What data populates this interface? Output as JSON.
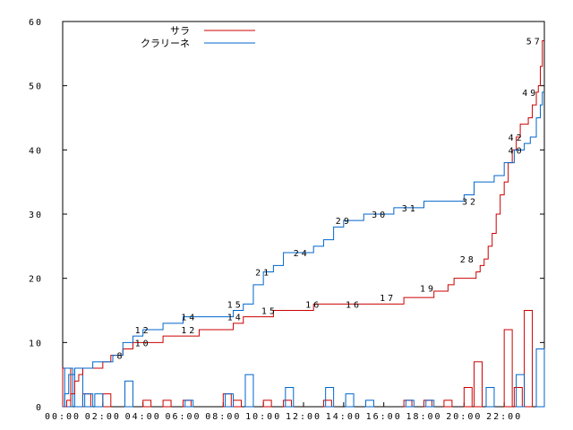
{
  "chart_data": {
    "type": "line",
    "ylim": [
      0,
      60
    ],
    "yticks": [
      0,
      10,
      20,
      30,
      40,
      50,
      60
    ],
    "ytick_labels": [
      "0",
      "10",
      "20",
      "30",
      "40",
      "50",
      "60"
    ],
    "xlim": [
      0,
      24
    ],
    "xticks": [
      0,
      2,
      4,
      6,
      8,
      10,
      12,
      14,
      16,
      18,
      20,
      22
    ],
    "xtick_labels": [
      "00:00",
      "02:00",
      "04:00",
      "06:00",
      "08:00",
      "10:00",
      "12:00",
      "14:00",
      "16:00",
      "18:00",
      "20:00",
      "22:00"
    ],
    "legend_position": "top-left",
    "series": [
      {
        "name": "サラ",
        "color": "#cc0000",
        "cumulative": [
          [
            0,
            0
          ],
          [
            0.2,
            1
          ],
          [
            0.4,
            2
          ],
          [
            0.6,
            4
          ],
          [
            0.8,
            5
          ],
          [
            1.0,
            6
          ],
          [
            1.4,
            6
          ],
          [
            2.0,
            7
          ],
          [
            2.4,
            8
          ],
          [
            3.0,
            9
          ],
          [
            3.5,
            10
          ],
          [
            4.5,
            10
          ],
          [
            5.0,
            11
          ],
          [
            6.5,
            11
          ],
          [
            6.8,
            12
          ],
          [
            8.0,
            12
          ],
          [
            8.5,
            13
          ],
          [
            9.0,
            14
          ],
          [
            9.8,
            14
          ],
          [
            10.5,
            15
          ],
          [
            12.0,
            15
          ],
          [
            12.5,
            16
          ],
          [
            16.5,
            16
          ],
          [
            17.0,
            17
          ],
          [
            18.0,
            17
          ],
          [
            18.5,
            18
          ],
          [
            19.2,
            19
          ],
          [
            19.5,
            20
          ],
          [
            20.3,
            20
          ],
          [
            20.6,
            21
          ],
          [
            20.8,
            22
          ],
          [
            21.0,
            23
          ],
          [
            21.2,
            25
          ],
          [
            21.4,
            27
          ],
          [
            21.6,
            30
          ],
          [
            21.8,
            33
          ],
          [
            22.0,
            35
          ],
          [
            22.2,
            38
          ],
          [
            22.4,
            40
          ],
          [
            22.6,
            42
          ],
          [
            22.8,
            44
          ],
          [
            23.2,
            45
          ],
          [
            23.4,
            47
          ],
          [
            23.6,
            49
          ],
          [
            23.7,
            50
          ],
          [
            23.8,
            53
          ],
          [
            23.9,
            57
          ]
        ]
      },
      {
        "name": "クラリーネ",
        "color": "#0066cc",
        "cumulative": [
          [
            0,
            0
          ],
          [
            0.1,
            2
          ],
          [
            0.3,
            5
          ],
          [
            0.6,
            6
          ],
          [
            1.0,
            6
          ],
          [
            1.5,
            7
          ],
          [
            2.5,
            8
          ],
          [
            3.0,
            10
          ],
          [
            3.5,
            11
          ],
          [
            4.0,
            12
          ],
          [
            5.0,
            13
          ],
          [
            6.0,
            14
          ],
          [
            8.5,
            15
          ],
          [
            9.0,
            16
          ],
          [
            9.5,
            19
          ],
          [
            10.0,
            21
          ],
          [
            10.5,
            22
          ],
          [
            11.0,
            24
          ],
          [
            12.5,
            25
          ],
          [
            13.0,
            26
          ],
          [
            13.5,
            28
          ],
          [
            14.0,
            29
          ],
          [
            15.0,
            30
          ],
          [
            16.5,
            31
          ],
          [
            18.0,
            32
          ],
          [
            19.5,
            32
          ],
          [
            20.0,
            33
          ],
          [
            20.5,
            35
          ],
          [
            21.0,
            35
          ],
          [
            21.5,
            36
          ],
          [
            22.0,
            38
          ],
          [
            22.5,
            40
          ],
          [
            23.0,
            41
          ],
          [
            23.3,
            42
          ],
          [
            23.6,
            45
          ],
          [
            23.8,
            47
          ],
          [
            23.9,
            49
          ]
        ]
      }
    ],
    "histogram": {
      "bin_width": 0.5,
      "サラ": [
        [
          0,
          6
        ],
        [
          1,
          2
        ],
        [
          2,
          2
        ],
        [
          4,
          1
        ],
        [
          5,
          1
        ],
        [
          6,
          1
        ],
        [
          8,
          2
        ],
        [
          8.5,
          1
        ],
        [
          10,
          1
        ],
        [
          11,
          1
        ],
        [
          13,
          1
        ],
        [
          17,
          1
        ],
        [
          18,
          1
        ],
        [
          19,
          1
        ],
        [
          20,
          3
        ],
        [
          20.5,
          7
        ],
        [
          22,
          12
        ],
        [
          22.5,
          3
        ],
        [
          23,
          15
        ]
      ],
      "クラリーネ": [
        [
          0,
          6
        ],
        [
          0.5,
          6
        ],
        [
          1,
          2
        ],
        [
          1.5,
          2
        ],
        [
          3,
          4
        ],
        [
          6,
          1
        ],
        [
          8,
          2
        ],
        [
          9,
          5
        ],
        [
          11,
          3
        ],
        [
          13,
          3
        ],
        [
          14,
          2
        ],
        [
          15,
          1
        ],
        [
          17,
          1
        ],
        [
          18,
          1
        ],
        [
          21,
          3
        ],
        [
          22.5,
          5
        ],
        [
          23.5,
          9
        ]
      ]
    },
    "annotations": [
      {
        "text": "57",
        "x": 23.5,
        "y": 57
      },
      {
        "text": "49",
        "x": 23.3,
        "y": 49
      },
      {
        "text": "42",
        "x": 22.6,
        "y": 42
      },
      {
        "text": "40",
        "x": 22.6,
        "y": 40
      },
      {
        "text": "32",
        "x": 20.3,
        "y": 32
      },
      {
        "text": "31",
        "x": 17.3,
        "y": 31
      },
      {
        "text": "30",
        "x": 15.8,
        "y": 30
      },
      {
        "text": "29",
        "x": 14.0,
        "y": 29
      },
      {
        "text": "28",
        "x": 20.2,
        "y": 23
      },
      {
        "text": "24",
        "x": 11.9,
        "y": 24
      },
      {
        "text": "21",
        "x": 10.0,
        "y": 21
      },
      {
        "text": "19",
        "x": 18.2,
        "y": 18.5
      },
      {
        "text": "17",
        "x": 16.2,
        "y": 17
      },
      {
        "text": "16",
        "x": 12.5,
        "y": 16
      },
      {
        "text": "16",
        "x": 14.5,
        "y": 16
      },
      {
        "text": "15",
        "x": 10.3,
        "y": 15
      },
      {
        "text": "15",
        "x": 8.6,
        "y": 16
      },
      {
        "text": "14",
        "x": 6.3,
        "y": 14
      },
      {
        "text": "14",
        "x": 8.6,
        "y": 14
      },
      {
        "text": "12",
        "x": 4.0,
        "y": 12
      },
      {
        "text": "12",
        "x": 6.3,
        "y": 12
      },
      {
        "text": "10",
        "x": 4.0,
        "y": 10
      },
      {
        "text": "8",
        "x": 2.9,
        "y": 8
      }
    ]
  }
}
